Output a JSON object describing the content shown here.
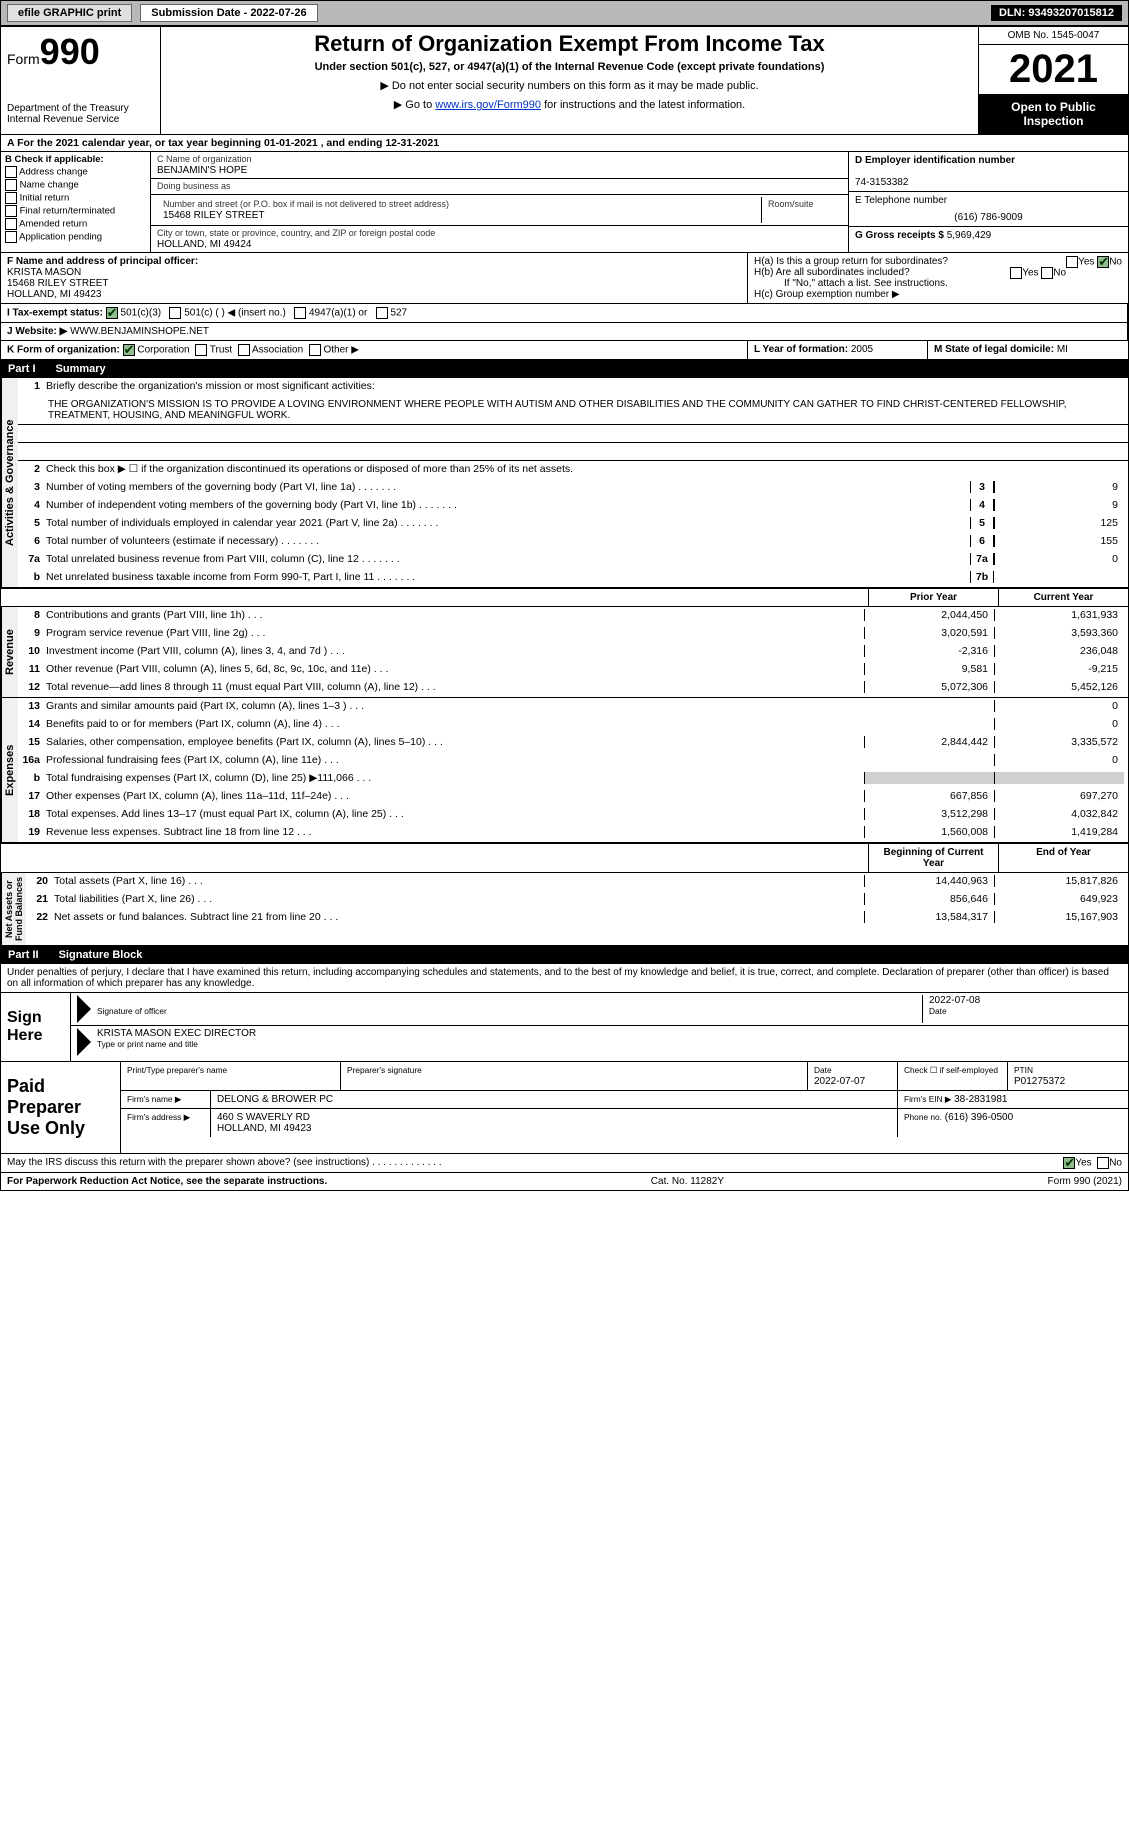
{
  "topbar": {
    "efile": "efile GRAPHIC print",
    "subdate_label": "Submission Date - 2022-07-26",
    "dln": "DLN: 93493207015812"
  },
  "header": {
    "form_prefix": "Form",
    "form_num": "990",
    "dept": "Department of the Treasury\nInternal Revenue Service",
    "title": "Return of Organization Exempt From Income Tax",
    "subtitle": "Under section 501(c), 527, or 4947(a)(1) of the Internal Revenue Code (except private foundations)",
    "note1": "▶ Do not enter social security numbers on this form as it may be made public.",
    "note2_pre": "▶ Go to ",
    "note2_link": "www.irs.gov/Form990",
    "note2_post": " for instructions and the latest information.",
    "omb": "OMB No. 1545-0047",
    "year": "2021",
    "inspect": "Open to Public Inspection"
  },
  "row_a": "A For the 2021 calendar year, or tax year beginning 01-01-2021   , and ending 12-31-2021",
  "check_b": {
    "label": "B Check if applicable:",
    "opts": [
      "Address change",
      "Name change",
      "Initial return",
      "Final return/terminated",
      "Amended return",
      "Application pending"
    ]
  },
  "org": {
    "name_label": "C Name of organization",
    "name": "BENJAMIN'S HOPE",
    "dba_label": "Doing business as",
    "dba": "",
    "addr_label": "Number and street (or P.O. box if mail is not delivered to street address)",
    "room_label": "Room/suite",
    "addr": "15468 RILEY STREET",
    "city_label": "City or town, state or province, country, and ZIP or foreign postal code",
    "city": "HOLLAND, MI  49424"
  },
  "col_d": {
    "ein_label": "D Employer identification number",
    "ein": "74-3153382",
    "phone_label": "E Telephone number",
    "phone": "(616) 786-9009",
    "gross_label": "G Gross receipts $",
    "gross": "5,969,429"
  },
  "officer": {
    "label": "F Name and address of principal officer:",
    "name": "KRISTA MASON",
    "addr1": "15468 RILEY STREET",
    "addr2": "HOLLAND, MI  49423"
  },
  "h": {
    "a": "H(a)  Is this a group return for subordinates?",
    "b": "H(b)  Are all subordinates included?",
    "note": "If \"No,\" attach a list. See instructions.",
    "c": "H(c)  Group exemption number ▶"
  },
  "tax_status": {
    "label": "I  Tax-exempt status:",
    "o1": "501(c)(3)",
    "o2": "501(c) (  ) ◀ (insert no.)",
    "o3": "4947(a)(1) or",
    "o4": "527"
  },
  "website": {
    "label": "J  Website: ▶",
    "val": "WWW.BENJAMINSHOPE.NET"
  },
  "k": {
    "label": "K Form of organization:",
    "opts": [
      "Corporation",
      "Trust",
      "Association",
      "Other ▶"
    ]
  },
  "l": {
    "label": "L Year of formation:",
    "val": "2005"
  },
  "m": {
    "label": "M State of legal domicile:",
    "val": "MI"
  },
  "part1": {
    "num": "Part I",
    "title": "Summary"
  },
  "summary": {
    "q1_label": "Briefly describe the organization's mission or most significant activities:",
    "mission": "THE ORGANIZATION'S MISSION IS TO PROVIDE A LOVING ENVIRONMENT WHERE PEOPLE WITH AUTISM AND OTHER DISABILITIES AND THE COMMUNITY CAN GATHER TO FIND CHRIST-CENTERED FELLOWSHIP, TREATMENT, HOUSING, AND MEANINGFUL WORK.",
    "q2": "Check this box ▶ ☐ if the organization discontinued its operations or disposed of more than 25% of its net assets.",
    "lines_gov": [
      {
        "n": "3",
        "d": "Number of voting members of the governing body (Part VI, line 1a)",
        "box": "3",
        "v": "9"
      },
      {
        "n": "4",
        "d": "Number of independent voting members of the governing body (Part VI, line 1b)",
        "box": "4",
        "v": "9"
      },
      {
        "n": "5",
        "d": "Total number of individuals employed in calendar year 2021 (Part V, line 2a)",
        "box": "5",
        "v": "125"
      },
      {
        "n": "6",
        "d": "Total number of volunteers (estimate if necessary)",
        "box": "6",
        "v": "155"
      },
      {
        "n": "7a",
        "d": "Total unrelated business revenue from Part VIII, column (C), line 12",
        "box": "7a",
        "v": "0"
      },
      {
        "n": "b",
        "d": "Net unrelated business taxable income from Form 990-T, Part I, line 11",
        "box": "7b",
        "v": ""
      }
    ],
    "col_hdr": {
      "prior": "Prior Year",
      "curr": "Current Year"
    },
    "revenue": [
      {
        "n": "8",
        "d": "Contributions and grants (Part VIII, line 1h)",
        "p": "2,044,450",
        "c": "1,631,933"
      },
      {
        "n": "9",
        "d": "Program service revenue (Part VIII, line 2g)",
        "p": "3,020,591",
        "c": "3,593,360"
      },
      {
        "n": "10",
        "d": "Investment income (Part VIII, column (A), lines 3, 4, and 7d )",
        "p": "-2,316",
        "c": "236,048"
      },
      {
        "n": "11",
        "d": "Other revenue (Part VIII, column (A), lines 5, 6d, 8c, 9c, 10c, and 11e)",
        "p": "9,581",
        "c": "-9,215"
      },
      {
        "n": "12",
        "d": "Total revenue—add lines 8 through 11 (must equal Part VIII, column (A), line 12)",
        "p": "5,072,306",
        "c": "5,452,126"
      }
    ],
    "expenses": [
      {
        "n": "13",
        "d": "Grants and similar amounts paid (Part IX, column (A), lines 1–3 )",
        "p": "",
        "c": "0"
      },
      {
        "n": "14",
        "d": "Benefits paid to or for members (Part IX, column (A), line 4)",
        "p": "",
        "c": "0"
      },
      {
        "n": "15",
        "d": "Salaries, other compensation, employee benefits (Part IX, column (A), lines 5–10)",
        "p": "2,844,442",
        "c": "3,335,572"
      },
      {
        "n": "16a",
        "d": "Professional fundraising fees (Part IX, column (A), line 11e)",
        "p": "",
        "c": "0"
      },
      {
        "n": "b",
        "d": "Total fundraising expenses (Part IX, column (D), line 25) ▶111,066",
        "p": "shade",
        "c": "shade"
      },
      {
        "n": "17",
        "d": "Other expenses (Part IX, column (A), lines 11a–11d, 11f–24e)",
        "p": "667,856",
        "c": "697,270"
      },
      {
        "n": "18",
        "d": "Total expenses. Add lines 13–17 (must equal Part IX, column (A), line 25)",
        "p": "3,512,298",
        "c": "4,032,842"
      },
      {
        "n": "19",
        "d": "Revenue less expenses. Subtract line 18 from line 12",
        "p": "1,560,008",
        "c": "1,419,284"
      }
    ],
    "net_hdr": {
      "begin": "Beginning of Current Year",
      "end": "End of Year"
    },
    "net": [
      {
        "n": "20",
        "d": "Total assets (Part X, line 16)",
        "p": "14,440,963",
        "c": "15,817,826"
      },
      {
        "n": "21",
        "d": "Total liabilities (Part X, line 26)",
        "p": "856,646",
        "c": "649,923"
      },
      {
        "n": "22",
        "d": "Net assets or fund balances. Subtract line 21 from line 20",
        "p": "13,584,317",
        "c": "15,167,903"
      }
    ]
  },
  "part2": {
    "num": "Part II",
    "title": "Signature Block"
  },
  "sig_pen": "Under penalties of perjury, I declare that I have examined this return, including accompanying schedules and statements, and to the best of my knowledge and belief, it is true, correct, and complete. Declaration of preparer (other than officer) is based on all information of which preparer has any knowledge.",
  "sign": {
    "here": "Sign Here",
    "officer_sig": "Signature of officer",
    "date": "2022-07-08",
    "date_label": "Date",
    "name": "KRISTA MASON  EXEC DIRECTOR",
    "name_label": "Type or print name and title"
  },
  "preparer": {
    "label": "Paid Preparer Use Only",
    "print_label": "Print/Type preparer's name",
    "sig_label": "Preparer's signature",
    "date_label": "Date",
    "date": "2022-07-07",
    "self_label": "Check ☐ if self-employed",
    "ptin_label": "PTIN",
    "ptin": "P01275372",
    "firm_label": "Firm's name    ▶",
    "firm": "DELONG & BROWER PC",
    "ein_label": "Firm's EIN ▶",
    "ein": "38-2831981",
    "addr_label": "Firm's address ▶",
    "addr1": "460 S WAVERLY RD",
    "addr2": "HOLLAND, MI  49423",
    "phone_label": "Phone no.",
    "phone": "(616) 396-0500"
  },
  "discuss": "May the IRS discuss this return with the preparer shown above? (see instructions)",
  "footer": {
    "paperwork": "For Paperwork Reduction Act Notice, see the separate instructions.",
    "cat": "Cat. No. 11282Y",
    "form": "Form 990 (2021)"
  },
  "yes": "Yes",
  "no": "No"
}
